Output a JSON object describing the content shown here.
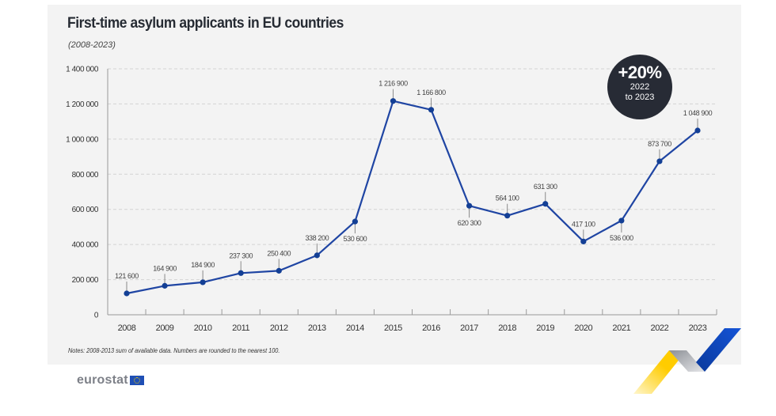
{
  "header": {
    "title": "First-time asylum applicants in EU countries",
    "subtitle": "(2008-2023)"
  },
  "badge": {
    "percent": "+20%",
    "line1": "2022",
    "line2": "to 2023"
  },
  "notes": "Notes: 2008-2013 sum of available data. Numbers are rounded to the nearest 100.",
  "footer": {
    "logo_text": "eurostat",
    "flag_icon": "eu-flag-icon"
  },
  "colors": {
    "line": "#1f45a3",
    "badge_bg": "#272b35",
    "panel_bg": "#f3f3f3",
    "accent_yellow": "#ffcc00",
    "accent_blue": "#0f47c8"
  },
  "chart_data": {
    "type": "line",
    "title": "First-time asylum applicants in EU countries",
    "subtitle": "(2008-2023)",
    "xlabel": "",
    "ylabel": "",
    "ylim": [
      0,
      1400000
    ],
    "yticks": [
      0,
      200000,
      400000,
      600000,
      800000,
      1000000,
      1200000,
      1400000
    ],
    "ytick_labels": [
      "0",
      "200 000",
      "400 000",
      "600 000",
      "800 000",
      "1 000 000",
      "1 200 000",
      "1 400 000"
    ],
    "grid": "horizontal-dashed",
    "categories": [
      "2008",
      "2009",
      "2010",
      "2011",
      "2012",
      "2013",
      "2014",
      "2015",
      "2016",
      "2017",
      "2018",
      "2019",
      "2020",
      "2021",
      "2022",
      "2023"
    ],
    "series": [
      {
        "name": "First-time asylum applicants",
        "values": [
          121600,
          164900,
          184900,
          237300,
          250400,
          338200,
          530600,
          1216900,
          1166800,
          620300,
          564100,
          631300,
          417100,
          536000,
          873700,
          1048900
        ],
        "labels": [
          "121 600",
          "164 900",
          "184 900",
          "237 300",
          "250 400",
          "338 200",
          "530 600",
          "1 216 900",
          "1 166 800",
          "620 300",
          "564 100",
          "631 300",
          "417 100",
          "536 000",
          "873 700",
          "1 048 900"
        ],
        "label_position": [
          "above",
          "above",
          "above",
          "above",
          "above",
          "above",
          "below",
          "above",
          "above",
          "below",
          "above",
          "above",
          "above",
          "below",
          "above",
          "above"
        ]
      }
    ],
    "annotations": [
      "+20% 2022 to 2023"
    ]
  }
}
